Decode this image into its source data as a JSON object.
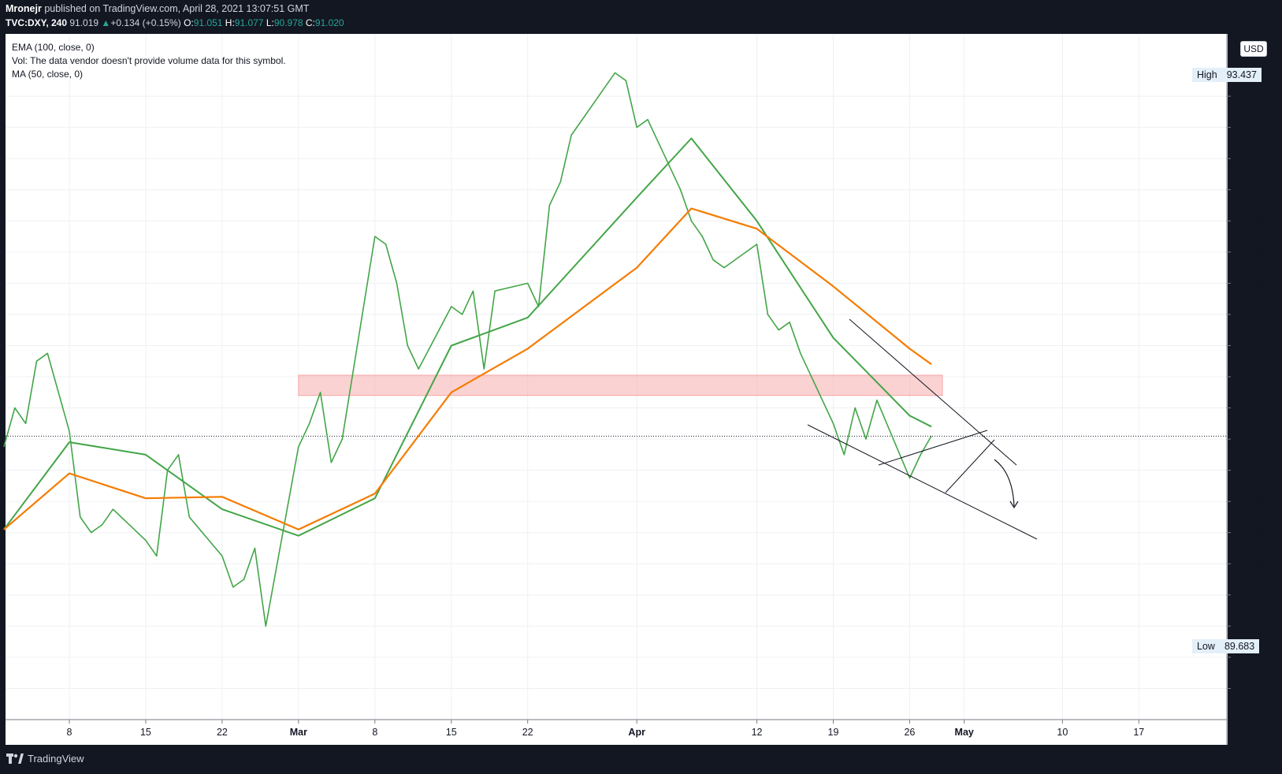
{
  "header": {
    "author": "Mronejr",
    "published": "published on TradingView.com, April 28, 2021 13:07:51 GMT",
    "symbol": "TVC:DXY, 240",
    "last": "91.019",
    "change": "+0.134 (+0.15%)",
    "open_label": "O:",
    "open": "91.051",
    "high_label": "H:",
    "high": "91.077",
    "low_label": "L:",
    "low": "90.978",
    "close_label": "C:",
    "close": "91.020"
  },
  "legend": {
    "ema": "EMA (100, close, 0)",
    "vol": "Vol: The data vendor doesn't provide volume data for this symbol.",
    "ma": "MA (50, close, 0)"
  },
  "price_axis": {
    "currency": "USD",
    "high_label": "High",
    "high_value": "93.437",
    "low_label": "Low",
    "low_value": "89.683"
  },
  "footer": {
    "brand": "TradingView"
  },
  "colors": {
    "price": "#43a547",
    "ma50": "#43a547",
    "ema100": "#f57c00",
    "zone": "#f8a5a5",
    "background": "#131722",
    "pane": "#ffffff"
  },
  "chart_data": {
    "type": "line",
    "symbol": "TVC:DXY",
    "interval": "240",
    "ylim": [
      89.2,
      93.6
    ],
    "y_ticks": [
      89.4,
      89.6,
      89.8,
      90.0,
      90.2,
      90.4,
      90.6,
      90.8,
      91.0,
      91.2,
      91.4,
      91.6,
      91.8,
      92.0,
      92.2,
      92.4,
      92.6,
      92.8,
      93.0,
      93.2
    ],
    "x_ticks": [
      {
        "label": "8",
        "date": "2021-02-08"
      },
      {
        "label": "15",
        "date": "2021-02-15"
      },
      {
        "label": "22",
        "date": "2021-02-22"
      },
      {
        "label": "Mar",
        "date": "2021-03-01"
      },
      {
        "label": "8",
        "date": "2021-03-08"
      },
      {
        "label": "15",
        "date": "2021-03-15"
      },
      {
        "label": "22",
        "date": "2021-03-22"
      },
      {
        "label": "Apr",
        "date": "2021-04-01"
      },
      {
        "label": "12",
        "date": "2021-04-12"
      },
      {
        "label": "19",
        "date": "2021-04-19"
      },
      {
        "label": "26",
        "date": "2021-04-26"
      },
      {
        "label": "May",
        "date": "2021-05-01"
      },
      {
        "label": "10",
        "date": "2021-05-10"
      },
      {
        "label": "17",
        "date": "2021-05-17"
      }
    ],
    "series": [
      {
        "name": "DXY",
        "x": [
          "2021-02-02",
          "2021-02-03",
          "2021-02-04",
          "2021-02-05",
          "2021-02-06",
          "2021-02-08",
          "2021-02-09",
          "2021-02-10",
          "2021-02-11",
          "2021-02-12",
          "2021-02-15",
          "2021-02-16",
          "2021-02-17",
          "2021-02-18",
          "2021-02-19",
          "2021-02-22",
          "2021-02-23",
          "2021-02-24",
          "2021-02-25",
          "2021-02-26",
          "2021-03-01",
          "2021-03-02",
          "2021-03-03",
          "2021-03-04",
          "2021-03-05",
          "2021-03-08",
          "2021-03-09",
          "2021-03-10",
          "2021-03-11",
          "2021-03-12",
          "2021-03-15",
          "2021-03-16",
          "2021-03-17",
          "2021-03-18",
          "2021-03-19",
          "2021-03-22",
          "2021-03-23",
          "2021-03-24",
          "2021-03-25",
          "2021-03-26",
          "2021-03-29",
          "2021-03-30",
          "2021-03-31",
          "2021-04-01",
          "2021-04-02",
          "2021-04-05",
          "2021-04-06",
          "2021-04-07",
          "2021-04-08",
          "2021-04-09",
          "2021-04-12",
          "2021-04-13",
          "2021-04-14",
          "2021-04-15",
          "2021-04-16",
          "2021-04-19",
          "2021-04-20",
          "2021-04-21",
          "2021-04-22",
          "2021-04-23",
          "2021-04-26",
          "2021-04-27",
          "2021-04-28"
        ],
        "values": [
          90.95,
          91.2,
          91.1,
          91.5,
          91.55,
          91.05,
          90.5,
          90.4,
          90.45,
          90.55,
          90.35,
          90.25,
          90.8,
          90.9,
          90.5,
          90.25,
          90.05,
          90.1,
          90.3,
          89.8,
          90.95,
          91.1,
          91.3,
          90.85,
          91.0,
          92.3,
          92.25,
          92.0,
          91.6,
          91.45,
          91.85,
          91.8,
          91.95,
          91.45,
          91.95,
          92.0,
          91.85,
          92.5,
          92.65,
          92.95,
          93.25,
          93.35,
          93.3,
          93.0,
          93.05,
          92.6,
          92.4,
          92.3,
          92.15,
          92.1,
          92.25,
          91.8,
          91.7,
          91.75,
          91.55,
          91.1,
          90.9,
          91.2,
          91.0,
          91.25,
          90.75,
          90.9,
          91.02
        ]
      },
      {
        "name": "MA (50, close, 0)",
        "x": [
          "2021-02-02",
          "2021-02-08",
          "2021-02-15",
          "2021-02-22",
          "2021-03-01",
          "2021-03-08",
          "2021-03-15",
          "2021-03-22",
          "2021-04-01",
          "2021-04-06",
          "2021-04-12",
          "2021-04-19",
          "2021-04-26",
          "2021-04-28"
        ],
        "values": [
          90.42,
          90.98,
          90.9,
          90.55,
          90.38,
          90.62,
          91.6,
          91.78,
          92.55,
          92.93,
          92.4,
          91.65,
          91.15,
          91.08
        ]
      },
      {
        "name": "EMA (100, close, 0)",
        "x": [
          "2021-02-02",
          "2021-02-08",
          "2021-02-15",
          "2021-02-22",
          "2021-03-01",
          "2021-03-08",
          "2021-03-15",
          "2021-03-22",
          "2021-04-01",
          "2021-04-06",
          "2021-04-12",
          "2021-04-19",
          "2021-04-26",
          "2021-04-28"
        ],
        "values": [
          90.42,
          90.78,
          90.62,
          90.63,
          90.42,
          90.65,
          91.3,
          91.58,
          92.1,
          92.48,
          92.35,
          91.98,
          91.58,
          91.48
        ]
      }
    ],
    "annotations": [
      {
        "type": "zone",
        "y_range": [
          91.28,
          91.41
        ],
        "x_range": [
          "2021-03-01",
          "2021-04-29"
        ]
      }
    ]
  }
}
